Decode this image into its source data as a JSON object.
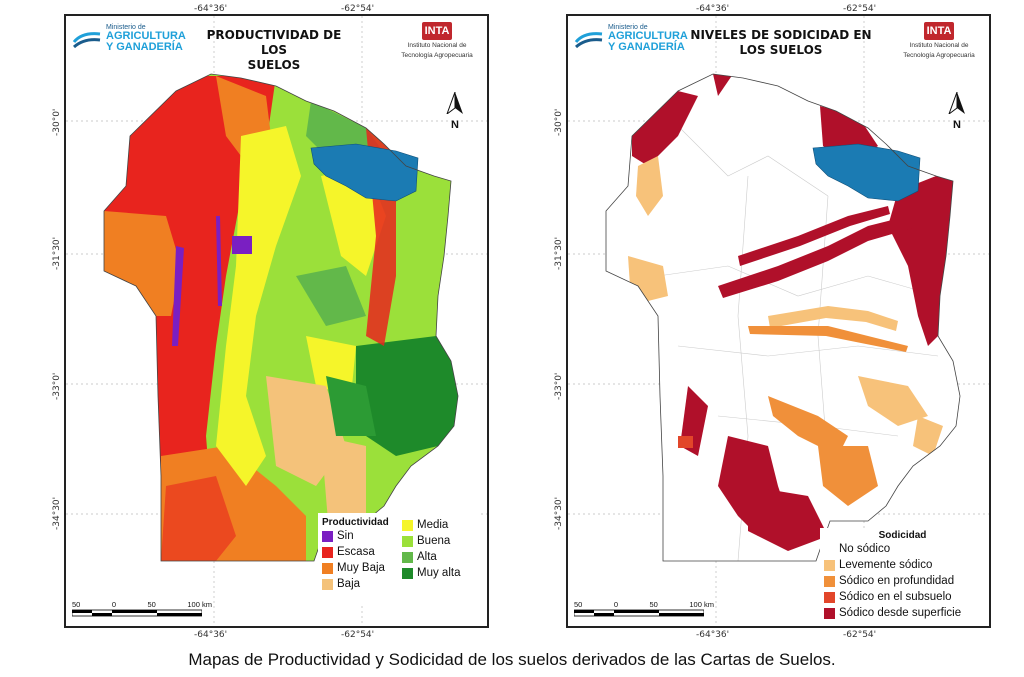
{
  "left_map": {
    "title_line1": "PRODUCTIVIDAD DE LOS",
    "title_line2": "SUELOS",
    "coords": {
      "top_left": "-64°36'",
      "top_right": "-62°54'",
      "bottom_left": "-64°36'",
      "bottom_right": "-62°54'",
      "lat_30": "-30°0'",
      "lat_31": "-31°30'",
      "lat_33": "-33°0'",
      "lat_34": "-34°30'"
    },
    "legend": {
      "title": "Productividad",
      "items": [
        {
          "label": "Sin",
          "color": "#7a1fc2"
        },
        {
          "label": "Escasa",
          "color": "#e8241e"
        },
        {
          "label": "Muy Baja",
          "color": "#f07f22"
        },
        {
          "label": "Baja",
          "color": "#f4c27a"
        },
        {
          "label": "Media",
          "color": "#f5f52a"
        },
        {
          "label": "Buena",
          "color": "#9be03a"
        },
        {
          "label": "Alta",
          "color": "#62b84a"
        },
        {
          "label": "Muy alta",
          "color": "#1e8a2a"
        }
      ]
    }
  },
  "right_map": {
    "title_line1": "NIVELES DE SODICIDAD EN",
    "title_line2": "LOS SUELOS",
    "coords": {
      "top_left": "-64°36'",
      "top_right": "-62°54'",
      "bottom_left": "-64°36'",
      "bottom_right": "-62°54'",
      "lat_30": "-30°0'",
      "lat_31": "-31°30'",
      "lat_33": "-33°0'",
      "lat_34": "-34°30'"
    },
    "legend": {
      "title": "Sodicidad",
      "items": [
        {
          "label": "No sódico",
          "color": "#ffffff"
        },
        {
          "label": "Levemente sódico",
          "color": "#f7c27a"
        },
        {
          "label": "Sódico en profundidad",
          "color": "#f0903a"
        },
        {
          "label": "Sódico en el subsuelo",
          "color": "#e2462a"
        },
        {
          "label": "Sódico desde superficie",
          "color": "#b0102a"
        }
      ]
    }
  },
  "shared": {
    "ministerio_small": "Ministerio de",
    "ministerio_line1": "AGRICULTURA",
    "ministerio_line2": "Y GANADERÍA",
    "inta_name": "INTA",
    "inta_line1": "Instituto Nacional de",
    "inta_line2": "Tecnología Agropecuaria",
    "north": "N",
    "scale_labels": [
      "50",
      "0",
      "50",
      "100 km"
    ],
    "lake_color": "#1b7bb3"
  },
  "caption": "Mapas de Productividad y Sodicidad de los suelos derivados de las Cartas de Suelos."
}
